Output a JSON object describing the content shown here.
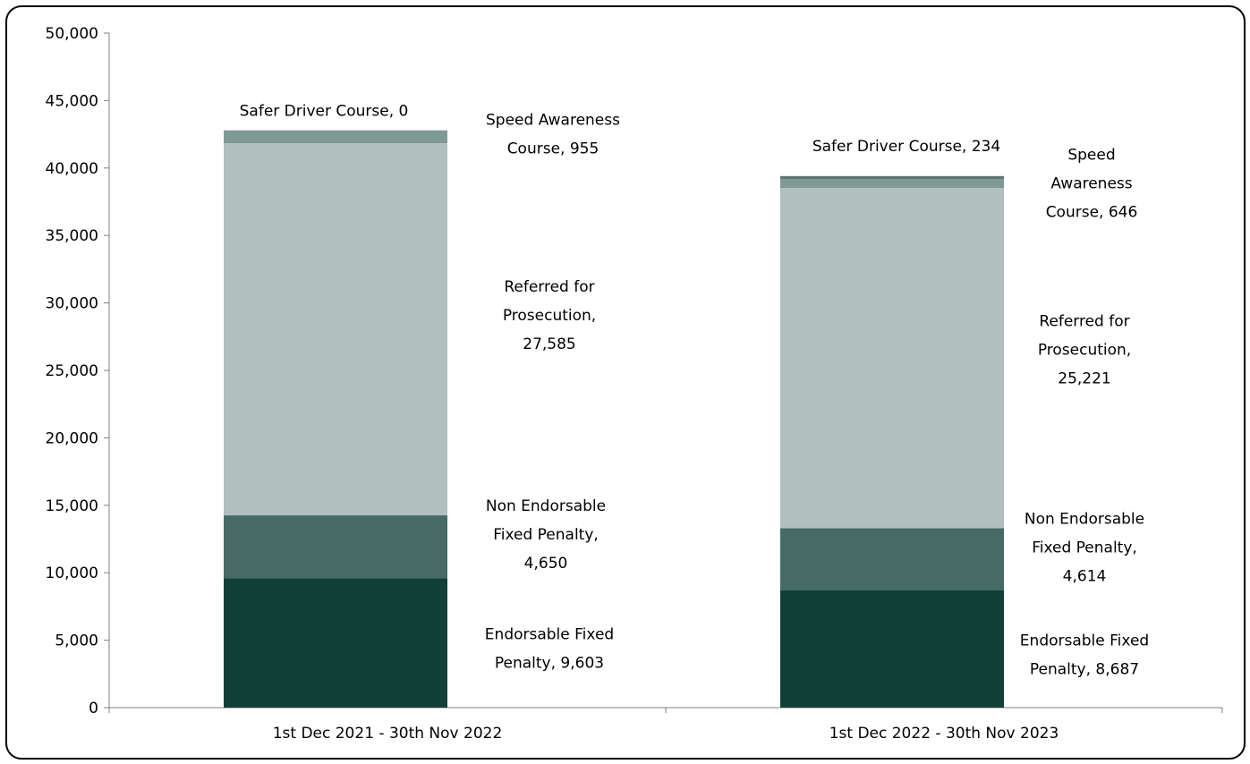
{
  "chart_data": {
    "type": "bar",
    "stacked": true,
    "title": "",
    "xlabel": "",
    "ylabel": "",
    "ylim": [
      0,
      50000
    ],
    "yticks": [
      0,
      5000,
      10000,
      15000,
      20000,
      25000,
      30000,
      35000,
      40000,
      45000,
      50000
    ],
    "ytick_labels": [
      "0",
      "5,000",
      "10,000",
      "15,000",
      "20,000",
      "25,000",
      "30,000",
      "35,000",
      "40,000",
      "45,000",
      "50,000"
    ],
    "grid": false,
    "legend": "none",
    "categories": [
      "1st Dec 2021 - 30th Nov 2022",
      "1st Dec 2022 - 30th Nov 2023"
    ],
    "series": [
      {
        "name": "Endorsable Fixed Penalty",
        "color": "#123f38",
        "values": [
          9603,
          8687
        ],
        "labels": [
          [
            "Endorsable Fixed",
            "Penalty, 9,603"
          ],
          [
            "Endorsable Fixed",
            "Penalty, 8,687"
          ]
        ]
      },
      {
        "name": "Non Endorsable Fixed Penalty",
        "color": "#466a66",
        "values": [
          4650,
          4614
        ],
        "labels": [
          [
            "Non Endorsable",
            "Fixed Penalty,",
            "4,650"
          ],
          [
            "Non Endorsable",
            "Fixed Penalty,",
            "4,614"
          ]
        ]
      },
      {
        "name": "Referred for Prosecution",
        "color": "#b1bfbe",
        "values": [
          27585,
          25221
        ],
        "labels": [
          [
            "Referred for",
            "Prosecution,",
            "27,585"
          ],
          [
            "Referred for",
            "Prosecution,",
            "25,221"
          ]
        ]
      },
      {
        "name": "Speed Awareness Course",
        "color": "#7f9a94",
        "values": [
          955,
          646
        ],
        "labels": [
          [
            "Speed Awareness",
            "Course, 955"
          ],
          [
            "Speed",
            "Awareness",
            "Course, 646"
          ]
        ]
      },
      {
        "name": "Safer Driver Course",
        "color": "#5d7772",
        "values": [
          0,
          234
        ],
        "labels": [
          [
            "Safer Driver Course, 0"
          ],
          [
            "Safer Driver Course, 234"
          ]
        ]
      }
    ]
  }
}
